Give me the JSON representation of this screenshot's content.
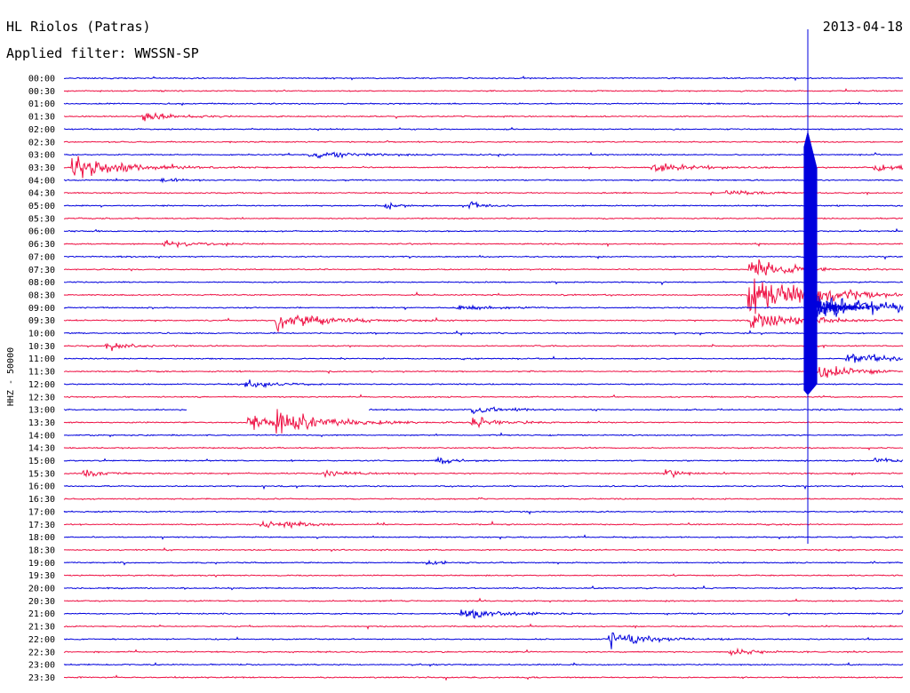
{
  "header": {
    "station": "HL Riolos (Patras)",
    "filter": "Applied filter: WWSSN-SP",
    "date": "2013-04-18"
  },
  "colors": {
    "trace_a": "#0000dd",
    "trace_b": "#ee1144",
    "text": "#000000"
  },
  "chart_data": {
    "type": "line",
    "title": "HL Riolos (Patras)",
    "subtitle": "Applied filter: WWSSN-SP",
    "ylabel": "HHZ - 50000",
    "xlabel": "",
    "grid": false,
    "rows": [
      "00:00",
      "00:30",
      "01:00",
      "01:30",
      "02:00",
      "02:30",
      "03:00",
      "03:30",
      "04:00",
      "04:30",
      "05:00",
      "05:30",
      "06:00",
      "06:30",
      "07:00",
      "07:30",
      "08:00",
      "08:30",
      "09:00",
      "09:30",
      "10:00",
      "10:30",
      "11:00",
      "11:30",
      "12:00",
      "12:30",
      "13:00",
      "13:30",
      "14:00",
      "14:30",
      "15:00",
      "15:30",
      "16:00",
      "16:30",
      "17:00",
      "17:30",
      "18:00",
      "18:30",
      "19:00",
      "19:30",
      "20:00",
      "20:30",
      "21:00",
      "21:30",
      "22:00",
      "22:30",
      "23:00",
      "23:30"
    ],
    "row_minutes": 30,
    "events": [
      {
        "row": "01:30",
        "minute": 2.8,
        "amplitude": 0.9,
        "duration": 1.0
      },
      {
        "row": "03:00",
        "minute": 8.8,
        "amplitude": 0.8,
        "duration": 1.5
      },
      {
        "row": "03:30",
        "minute": 0.3,
        "amplitude": 2.5,
        "duration": 1.5
      },
      {
        "row": "03:30",
        "minute": 21.0,
        "amplitude": 0.9,
        "duration": 1.5
      },
      {
        "row": "03:30",
        "minute": 29.0,
        "amplitude": 1.0,
        "duration": 1.0
      },
      {
        "row": "04:00",
        "minute": 3.5,
        "amplitude": 1.8,
        "duration": 0.3
      },
      {
        "row": "04:30",
        "minute": 23.7,
        "amplitude": 0.8,
        "duration": 0.8
      },
      {
        "row": "05:00",
        "minute": 11.5,
        "amplitude": 1.1,
        "duration": 0.4
      },
      {
        "row": "05:00",
        "minute": 14.5,
        "amplitude": 1.3,
        "duration": 0.4
      },
      {
        "row": "06:30",
        "minute": 3.5,
        "amplitude": 0.9,
        "duration": 0.8
      },
      {
        "row": "07:30",
        "minute": 24.5,
        "amplitude": 2.4,
        "duration": 1.2
      },
      {
        "row": "08:30",
        "minute": 24.5,
        "amplitude": 4.8,
        "duration": 1.8
      },
      {
        "row": "08:30",
        "minute": 26.7,
        "amplitude": 1.3,
        "duration": 1.0
      },
      {
        "row": "09:00",
        "minute": 26.6,
        "amplitude": 3.5,
        "duration": 2.5
      },
      {
        "row": "09:00",
        "minute": 14.0,
        "amplitude": 1.0,
        "duration": 0.8
      },
      {
        "row": "09:30",
        "minute": 7.6,
        "amplitude": 2.4,
        "duration": 1.5
      },
      {
        "row": "09:30",
        "minute": 24.5,
        "amplitude": 2.5,
        "duration": 1.5
      },
      {
        "row": "10:30",
        "minute": 1.5,
        "amplitude": 1.1,
        "duration": 0.8
      },
      {
        "row": "11:00",
        "minute": 28.0,
        "amplitude": 1.0,
        "duration": 2.0
      },
      {
        "row": "11:30",
        "minute": 27.0,
        "amplitude": 1.8,
        "duration": 1.0
      },
      {
        "row": "12:00",
        "minute": 6.5,
        "amplitude": 1.0,
        "duration": 0.8
      },
      {
        "row": "13:00",
        "minute": 14.6,
        "amplitude": 0.8,
        "duration": 1.0
      },
      {
        "row": "13:30",
        "minute": 6.6,
        "amplitude": 1.7,
        "duration": 1.2
      },
      {
        "row": "13:30",
        "minute": 7.6,
        "amplitude": 2.4,
        "duration": 1.5
      },
      {
        "row": "13:30",
        "minute": 14.6,
        "amplitude": 1.3,
        "duration": 1.0
      },
      {
        "row": "15:00",
        "minute": 13.3,
        "amplitude": 1.1,
        "duration": 0.5
      },
      {
        "row": "15:00",
        "minute": 29.0,
        "amplitude": 0.9,
        "duration": 0.8
      },
      {
        "row": "15:30",
        "minute": 0.7,
        "amplitude": 1.0,
        "duration": 0.6
      },
      {
        "row": "15:30",
        "minute": 9.3,
        "amplitude": 0.8,
        "duration": 0.8
      },
      {
        "row": "15:30",
        "minute": 21.5,
        "amplitude": 1.0,
        "duration": 0.6
      },
      {
        "row": "16:00",
        "minute": 30.0,
        "amplitude": 0.8,
        "duration": 0.6
      },
      {
        "row": "17:30",
        "minute": 7.0,
        "amplitude": 1.2,
        "duration": 0.5
      },
      {
        "row": "17:30",
        "minute": 7.9,
        "amplitude": 1.2,
        "duration": 0.5
      },
      {
        "row": "19:00",
        "minute": 13.0,
        "amplitude": 0.6,
        "duration": 0.4
      },
      {
        "row": "21:00",
        "minute": 14.2,
        "amplitude": 1.5,
        "duration": 1.2
      },
      {
        "row": "21:00",
        "minute": 30.0,
        "amplitude": 1.0,
        "duration": 1.0
      },
      {
        "row": "22:00",
        "minute": 19.5,
        "amplitude": 1.9,
        "duration": 1.2
      },
      {
        "row": "22:30",
        "minute": 23.8,
        "amplitude": 0.9,
        "duration": 0.8
      }
    ],
    "large_event": {
      "start_row": "03:30",
      "end_row": "12:00",
      "minute": 26.6,
      "peak_row": "09:00"
    },
    "gap": {
      "row": "13:00",
      "from_minute": 4.4,
      "to_minute": 10.9
    }
  }
}
